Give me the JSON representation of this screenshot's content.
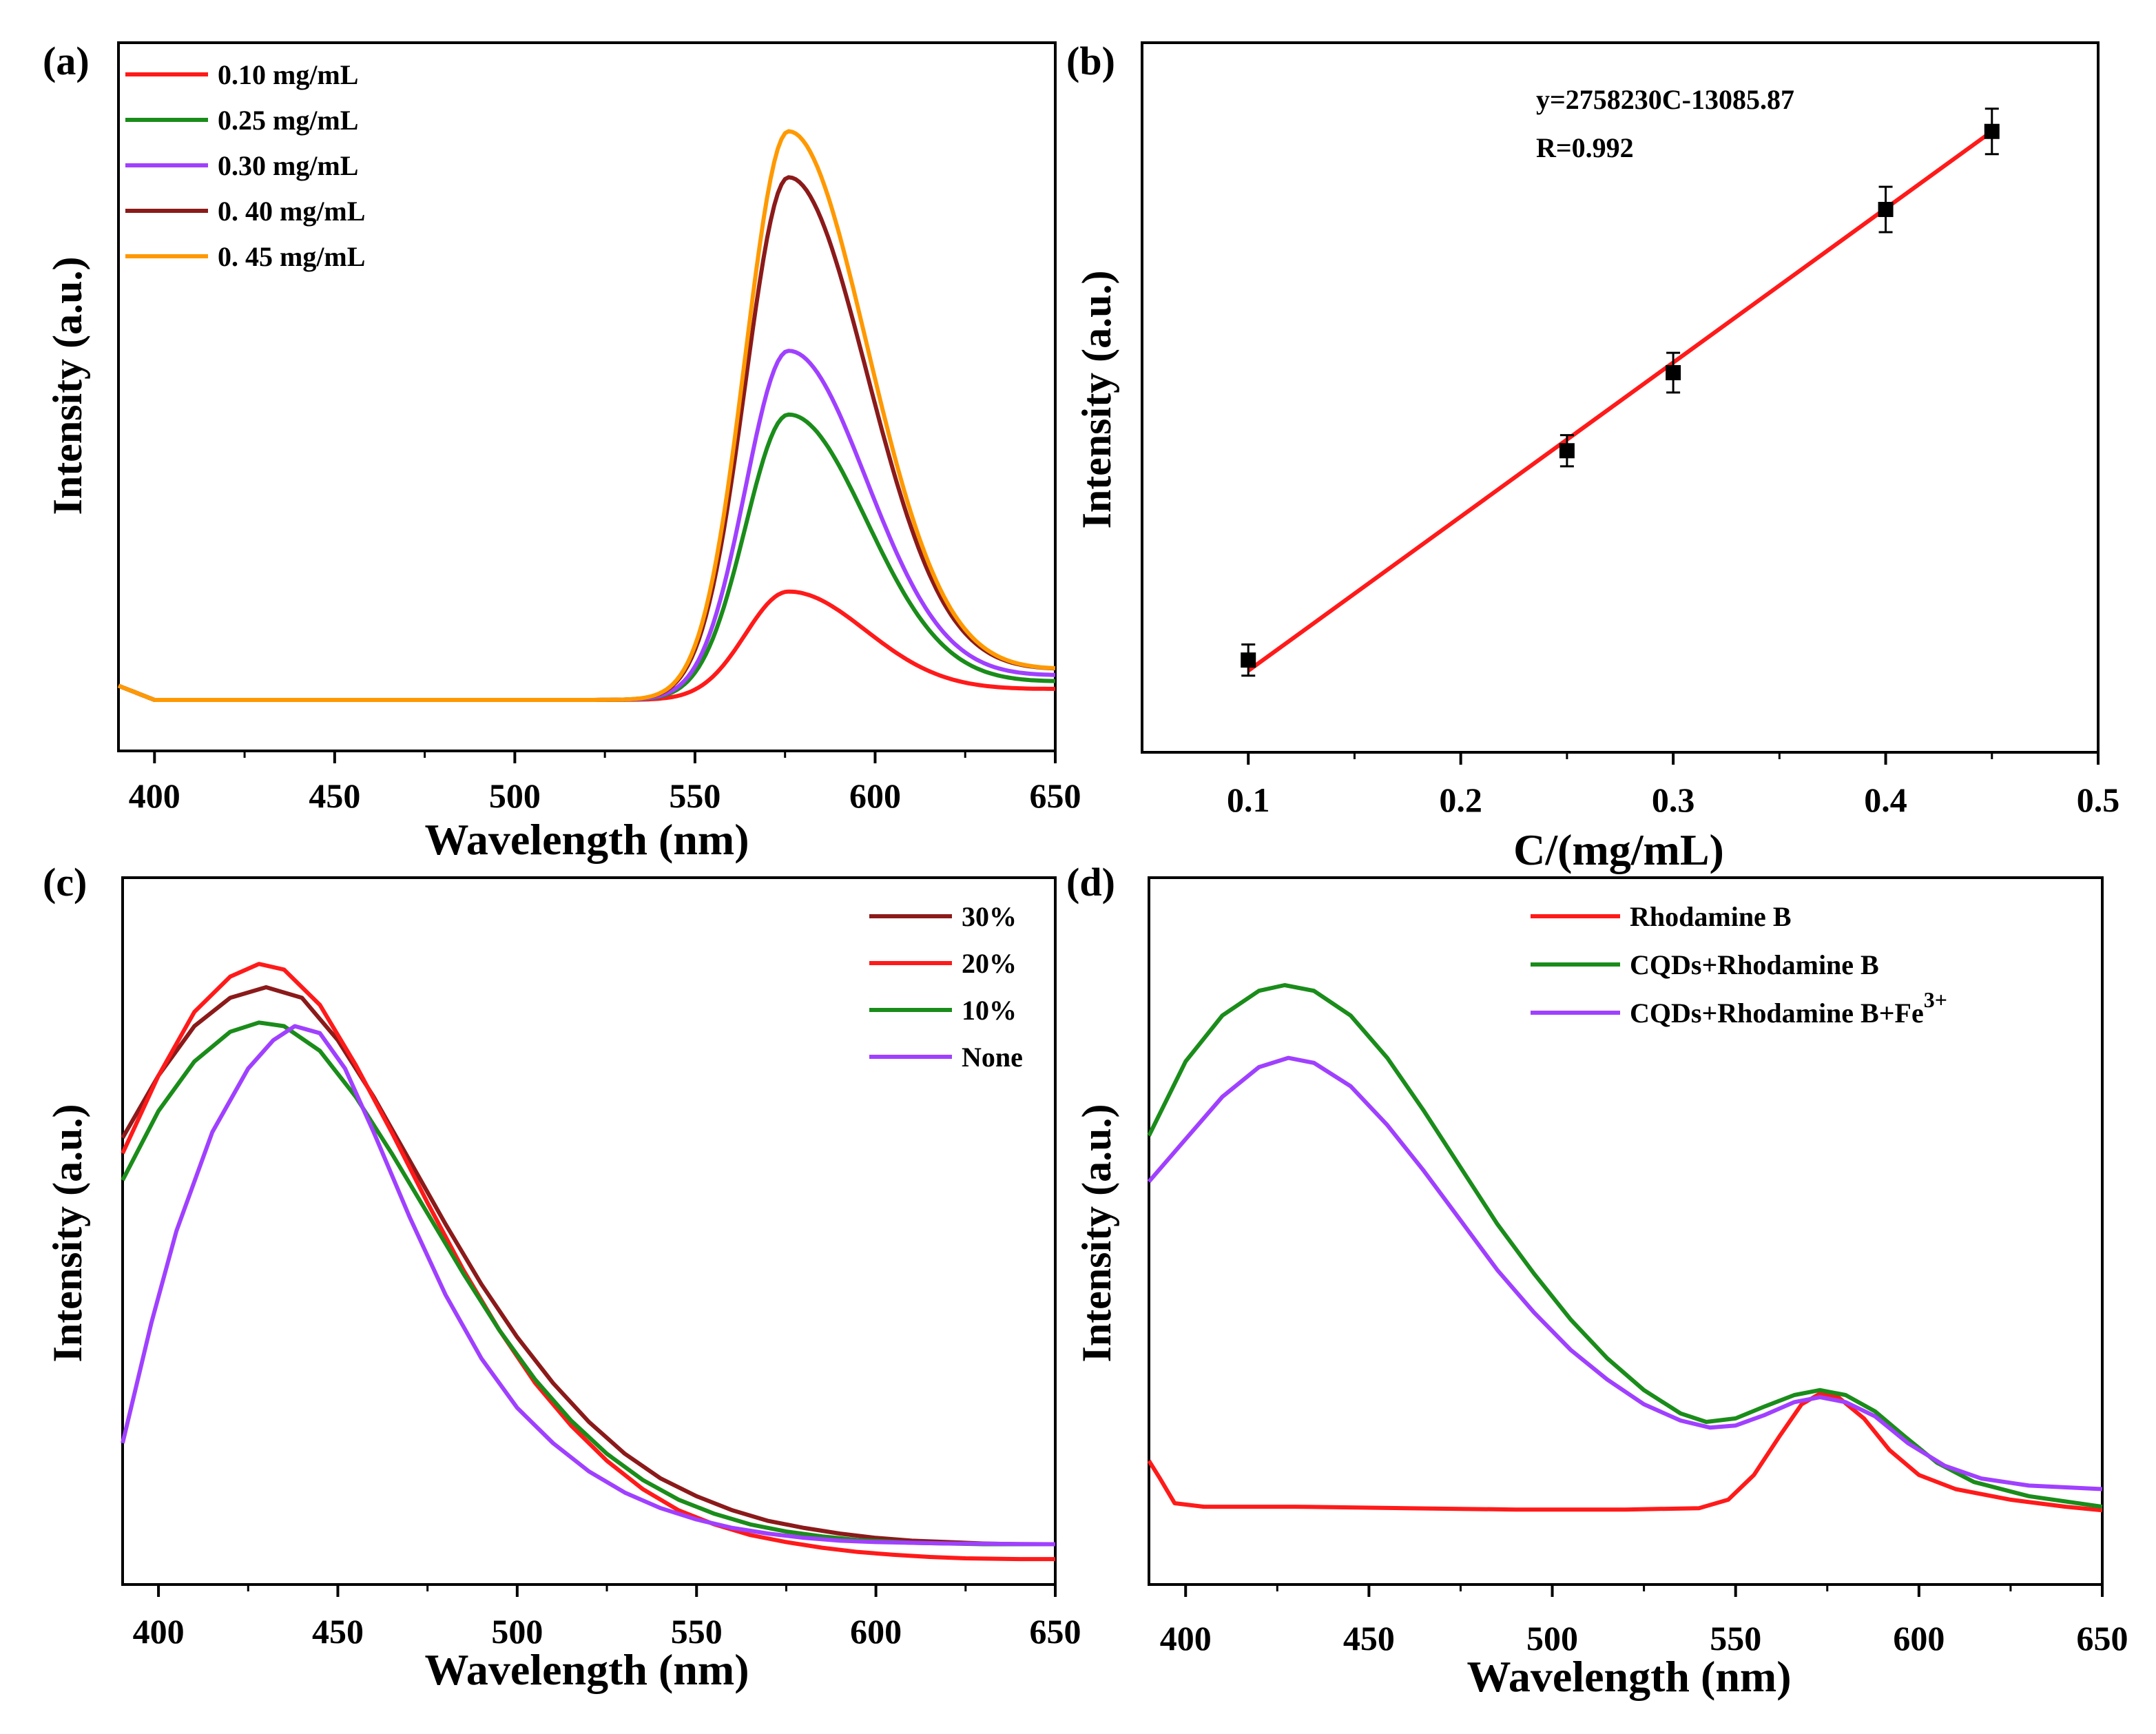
{
  "chart_data": [
    {
      "panel": "(a)",
      "type": "line",
      "xlabel": "Wavelength (nm)",
      "ylabel": "Intensity (a.u.)",
      "xlim": [
        390,
        650
      ],
      "ylim": [
        0,
        1
      ],
      "xticks": [
        "400",
        "450",
        "500",
        "550",
        "600",
        "650"
      ],
      "legend_position": "top-left",
      "series": [
        {
          "name": "0.10 mg/mL",
          "color": "#ff1a1a",
          "baseline": 0.072,
          "peak": 0.225,
          "center": 576,
          "width_left": 12,
          "width_right": 22,
          "tail": 0.018
        },
        {
          "name": "0.25 mg/mL",
          "color": "#1a8c1a",
          "baseline": 0.072,
          "peak": 0.475,
          "center": 576,
          "width_left": 12,
          "width_right": 22,
          "tail": 0.03
        },
        {
          "name": "0.30 mg/mL",
          "color": "#a040ff",
          "baseline": 0.072,
          "peak": 0.565,
          "center": 576,
          "width_left": 12,
          "width_right": 22,
          "tail": 0.04
        },
        {
          "name": "0. 40 mg/mL",
          "color": "#8b1a1a",
          "baseline": 0.072,
          "peak": 0.81,
          "center": 576,
          "width_left": 12,
          "width_right": 22,
          "tail": 0.05
        },
        {
          "name": "0. 45 mg/mL",
          "color": "#ff9900",
          "baseline": 0.072,
          "peak": 0.875,
          "center": 576,
          "width_left": 12,
          "width_right": 22,
          "tail": 0.05
        }
      ]
    },
    {
      "panel": "(b)",
      "type": "scatter",
      "xlabel": "C/(mg/mL)",
      "ylabel": "Intensity (a.u.)",
      "xlim": [
        0.05,
        0.5
      ],
      "ylim": [
        0,
        1
      ],
      "xticks": [
        "0.1",
        "0.2",
        "0.3",
        "0.4",
        "0.5"
      ],
      "annotation_equation": "y=2758230C-13085.87",
      "annotation_r": "R=0.992",
      "fit_color": "#ff1a1a",
      "points": [
        {
          "x": 0.1,
          "y": 0.13,
          "err": 0.022
        },
        {
          "x": 0.25,
          "y": 0.425,
          "err": 0.022
        },
        {
          "x": 0.3,
          "y": 0.535,
          "err": 0.028
        },
        {
          "x": 0.4,
          "y": 0.765,
          "err": 0.032
        },
        {
          "x": 0.45,
          "y": 0.875,
          "err": 0.032
        }
      ],
      "fit_line": {
        "x": [
          0.1,
          0.45
        ],
        "y": [
          0.115,
          0.875
        ]
      }
    },
    {
      "panel": "(c)",
      "type": "line",
      "xlabel": "Wavelength (nm)",
      "ylabel": "Intensity (a.u.)",
      "xlim": [
        390,
        650
      ],
      "ylim": [
        0,
        1
      ],
      "xticks": [
        "400",
        "450",
        "500",
        "550",
        "600",
        "650"
      ],
      "legend_position": "top-right",
      "series": [
        {
          "name": "30%",
          "color": "#8b1a1a",
          "points": [
            [
              390,
              0.632
            ],
            [
              400,
              0.72
            ],
            [
              410,
              0.79
            ],
            [
              420,
              0.83
            ],
            [
              430,
              0.845
            ],
            [
              440,
              0.83
            ],
            [
              450,
              0.77
            ],
            [
              460,
              0.69
            ],
            [
              470,
              0.6
            ],
            [
              480,
              0.51
            ],
            [
              490,
              0.425
            ],
            [
              500,
              0.35
            ],
            [
              510,
              0.285
            ],
            [
              520,
              0.23
            ],
            [
              530,
              0.185
            ],
            [
              540,
              0.15
            ],
            [
              550,
              0.125
            ],
            [
              560,
              0.105
            ],
            [
              570,
              0.09
            ],
            [
              580,
              0.08
            ],
            [
              590,
              0.072
            ],
            [
              600,
              0.066
            ],
            [
              610,
              0.062
            ],
            [
              620,
              0.06
            ],
            [
              630,
              0.058
            ],
            [
              640,
              0.057
            ],
            [
              650,
              0.057
            ]
          ]
        },
        {
          "name": "20%",
          "color": "#ff1a1a",
          "points": [
            [
              390,
              0.61
            ],
            [
              400,
              0.72
            ],
            [
              410,
              0.81
            ],
            [
              420,
              0.86
            ],
            [
              428,
              0.878
            ],
            [
              435,
              0.87
            ],
            [
              445,
              0.82
            ],
            [
              455,
              0.735
            ],
            [
              465,
              0.64
            ],
            [
              475,
              0.54
            ],
            [
              485,
              0.445
            ],
            [
              495,
              0.36
            ],
            [
              505,
              0.285
            ],
            [
              515,
              0.225
            ],
            [
              525,
              0.175
            ],
            [
              535,
              0.135
            ],
            [
              545,
              0.105
            ],
            [
              555,
              0.085
            ],
            [
              565,
              0.07
            ],
            [
              575,
              0.06
            ],
            [
              585,
              0.052
            ],
            [
              595,
              0.046
            ],
            [
              605,
              0.042
            ],
            [
              615,
              0.039
            ],
            [
              625,
              0.037
            ],
            [
              640,
              0.036
            ],
            [
              650,
              0.036
            ]
          ]
        },
        {
          "name": "10%",
          "color": "#1a8c1a",
          "points": [
            [
              390,
              0.572
            ],
            [
              400,
              0.67
            ],
            [
              410,
              0.74
            ],
            [
              420,
              0.782
            ],
            [
              428,
              0.795
            ],
            [
              435,
              0.79
            ],
            [
              445,
              0.755
            ],
            [
              455,
              0.69
            ],
            [
              465,
              0.61
            ],
            [
              475,
              0.525
            ],
            [
              485,
              0.44
            ],
            [
              495,
              0.36
            ],
            [
              505,
              0.29
            ],
            [
              515,
              0.232
            ],
            [
              525,
              0.185
            ],
            [
              535,
              0.148
            ],
            [
              545,
              0.12
            ],
            [
              555,
              0.1
            ],
            [
              565,
              0.085
            ],
            [
              575,
              0.075
            ],
            [
              585,
              0.068
            ],
            [
              595,
              0.063
            ],
            [
              610,
              0.059
            ],
            [
              630,
              0.057
            ],
            [
              650,
              0.057
            ]
          ]
        },
        {
          "name": "None",
          "color": "#a040ff",
          "points": [
            [
              390,
              0.2
            ],
            [
              398,
              0.37
            ],
            [
              405,
              0.5
            ],
            [
              415,
              0.64
            ],
            [
              425,
              0.73
            ],
            [
              432,
              0.77
            ],
            [
              438,
              0.79
            ],
            [
              445,
              0.78
            ],
            [
              452,
              0.73
            ],
            [
              460,
              0.64
            ],
            [
              470,
              0.52
            ],
            [
              480,
              0.41
            ],
            [
              490,
              0.32
            ],
            [
              500,
              0.25
            ],
            [
              510,
              0.2
            ],
            [
              520,
              0.16
            ],
            [
              530,
              0.13
            ],
            [
              540,
              0.108
            ],
            [
              550,
              0.092
            ],
            [
              560,
              0.08
            ],
            [
              570,
              0.072
            ],
            [
              580,
              0.066
            ],
            [
              590,
              0.062
            ],
            [
              600,
              0.06
            ],
            [
              620,
              0.058
            ],
            [
              650,
              0.057
            ]
          ]
        }
      ]
    },
    {
      "panel": "(d)",
      "type": "line",
      "xlabel": "Wavelength (nm)",
      "ylabel": "Intensity (a.u.)",
      "xlim": [
        390,
        650
      ],
      "ylim": [
        0,
        1
      ],
      "xticks": [
        "400",
        "450",
        "500",
        "550",
        "600",
        "650"
      ],
      "legend_position": "top-right",
      "legend_superscript": "3+",
      "series": [
        {
          "name": "Rhodamine B",
          "color": "#ff1a1a",
          "points": [
            [
              390,
              0.175
            ],
            [
              393,
              0.15
            ],
            [
              397,
              0.115
            ],
            [
              405,
              0.11
            ],
            [
              430,
              0.11
            ],
            [
              460,
              0.108
            ],
            [
              490,
              0.106
            ],
            [
              520,
              0.106
            ],
            [
              540,
              0.108
            ],
            [
              548,
              0.12
            ],
            [
              555,
              0.155
            ],
            [
              562,
              0.21
            ],
            [
              568,
              0.255
            ],
            [
              573,
              0.27
            ],
            [
              578,
              0.265
            ],
            [
              585,
              0.235
            ],
            [
              592,
              0.19
            ],
            [
              600,
              0.155
            ],
            [
              610,
              0.135
            ],
            [
              625,
              0.12
            ],
            [
              640,
              0.11
            ],
            [
              650,
              0.105
            ]
          ]
        },
        {
          "name": "CQDs+Rhodamine B",
          "color": "#1a8c1a",
          "points": [
            [
              390,
              0.635
            ],
            [
              400,
              0.74
            ],
            [
              410,
              0.805
            ],
            [
              420,
              0.84
            ],
            [
              427,
              0.848
            ],
            [
              435,
              0.84
            ],
            [
              445,
              0.805
            ],
            [
              455,
              0.745
            ],
            [
              465,
              0.67
            ],
            [
              475,
              0.59
            ],
            [
              485,
              0.51
            ],
            [
              495,
              0.44
            ],
            [
              505,
              0.375
            ],
            [
              515,
              0.32
            ],
            [
              525,
              0.275
            ],
            [
              535,
              0.242
            ],
            [
              542,
              0.23
            ],
            [
              550,
              0.235
            ],
            [
              558,
              0.252
            ],
            [
              566,
              0.268
            ],
            [
              573,
              0.275
            ],
            [
              580,
              0.268
            ],
            [
              588,
              0.245
            ],
            [
              596,
              0.21
            ],
            [
              605,
              0.172
            ],
            [
              615,
              0.145
            ],
            [
              630,
              0.125
            ],
            [
              650,
              0.11
            ]
          ]
        },
        {
          "name": "CQDs+Rhodamine B+Fe",
          "color": "#a040ff",
          "points": [
            [
              390,
              0.57
            ],
            [
              400,
              0.63
            ],
            [
              410,
              0.69
            ],
            [
              420,
              0.732
            ],
            [
              428,
              0.745
            ],
            [
              435,
              0.738
            ],
            [
              445,
              0.705
            ],
            [
              455,
              0.65
            ],
            [
              465,
              0.585
            ],
            [
              475,
              0.515
            ],
            [
              485,
              0.445
            ],
            [
              495,
              0.385
            ],
            [
              505,
              0.332
            ],
            [
              515,
              0.29
            ],
            [
              525,
              0.255
            ],
            [
              535,
              0.232
            ],
            [
              543,
              0.222
            ],
            [
              550,
              0.225
            ],
            [
              558,
              0.24
            ],
            [
              566,
              0.258
            ],
            [
              573,
              0.265
            ],
            [
              580,
              0.258
            ],
            [
              588,
              0.238
            ],
            [
              597,
              0.2
            ],
            [
              607,
              0.168
            ],
            [
              617,
              0.15
            ],
            [
              630,
              0.14
            ],
            [
              650,
              0.135
            ]
          ]
        }
      ]
    }
  ]
}
